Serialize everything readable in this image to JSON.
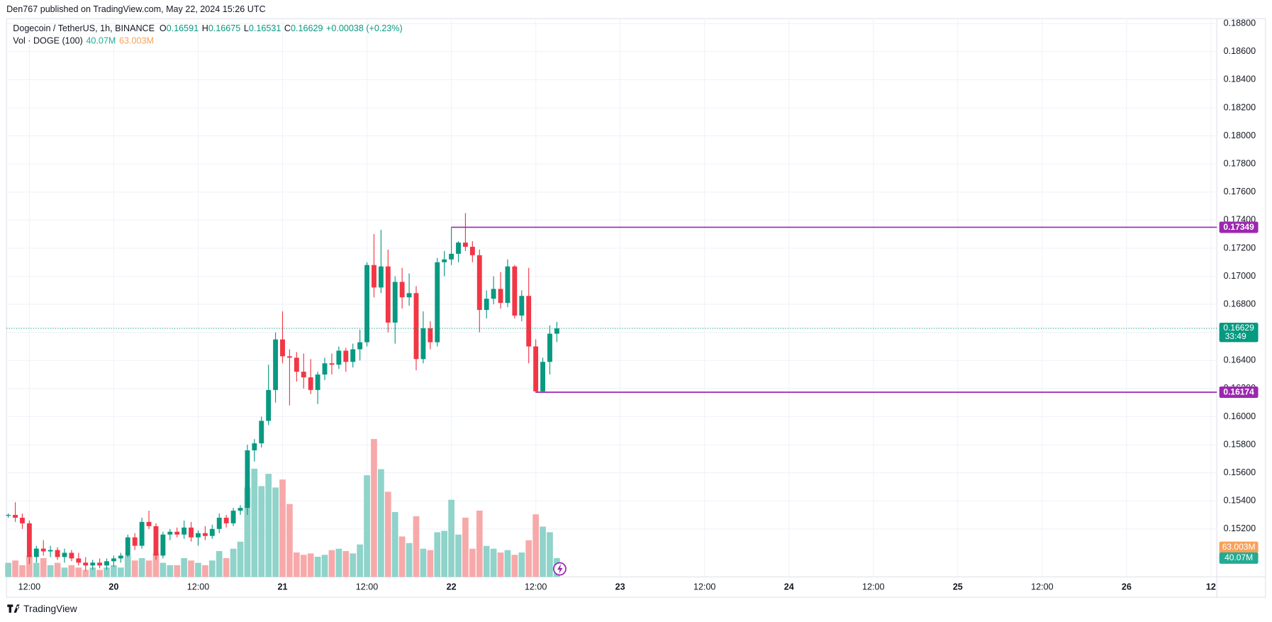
{
  "chart_data": {
    "type": "candlestick",
    "publisher_note": "Den767 published on TradingView.com, May 22, 2024 15:26 UTC",
    "title": "Dogecoin / TetherUS, 1h, BINANCE",
    "legend": {
      "fields": [
        {
          "key": "O",
          "value": "0.16591"
        },
        {
          "key": "H",
          "value": "0.16675"
        },
        {
          "key": "L",
          "value": "0.16531"
        },
        {
          "key": "C",
          "value": "0.16629"
        }
      ],
      "change": "+0.00038 (+0.23%)"
    },
    "x": [
      "19 09:00",
      "19 10:00",
      "19 11:00",
      "19 12:00",
      "19 13:00",
      "19 14:00",
      "19 15:00",
      "19 16:00",
      "19 17:00",
      "19 18:00",
      "19 19:00",
      "19 20:00",
      "19 21:00",
      "19 22:00",
      "19 23:00",
      "20 00:00",
      "20 01:00",
      "20 02:00",
      "20 03:00",
      "20 04:00",
      "20 05:00",
      "20 06:00",
      "20 07:00",
      "20 08:00",
      "20 09:00",
      "20 10:00",
      "20 11:00",
      "20 12:00",
      "20 13:00",
      "20 14:00",
      "20 15:00",
      "20 16:00",
      "20 17:00",
      "20 18:00",
      "20 19:00",
      "20 20:00",
      "20 21:00",
      "20 22:00",
      "20 23:00",
      "21 00:00",
      "21 01:00",
      "21 02:00",
      "21 03:00",
      "21 04:00",
      "21 05:00",
      "21 06:00",
      "21 07:00",
      "21 08:00",
      "21 09:00",
      "21 10:00",
      "21 11:00",
      "21 12:00",
      "21 13:00",
      "21 14:00",
      "21 15:00",
      "21 16:00",
      "21 17:00",
      "21 18:00",
      "21 19:00",
      "21 20:00",
      "21 21:00",
      "21 22:00",
      "21 23:00",
      "22 00:00",
      "22 01:00",
      "22 02:00",
      "22 03:00",
      "22 04:00",
      "22 05:00",
      "22 06:00",
      "22 07:00",
      "22 08:00",
      "22 09:00",
      "22 10:00",
      "22 11:00",
      "22 12:00",
      "22 13:00",
      "22 14:00",
      "22 15:00"
    ],
    "open": [
      0.153,
      0.153,
      0.1528,
      0.1524,
      0.15,
      0.1506,
      0.1504,
      0.1505,
      0.15,
      0.1503,
      0.1499,
      0.1496,
      0.1494,
      0.1496,
      0.1494,
      0.1497,
      0.1499,
      0.1501,
      0.1514,
      0.1508,
      0.1525,
      0.1522,
      0.1501,
      0.1516,
      0.1518,
      0.1516,
      0.1521,
      0.1514,
      0.1517,
      0.1515,
      0.152,
      0.1528,
      0.1524,
      0.1533,
      0.1535,
      0.1576,
      0.1581,
      0.1597,
      0.1619,
      0.1655,
      0.1643,
      0.1642,
      0.1632,
      0.1628,
      0.1619,
      0.163,
      0.1638,
      0.1637,
      0.1647,
      0.1639,
      0.1648,
      0.1653,
      0.1708,
      0.1692,
      0.1707,
      0.1667,
      0.1696,
      0.1685,
      0.1688,
      0.1641,
      0.1663,
      0.1653,
      0.171,
      0.1712,
      0.1716,
      0.1724,
      0.1721,
      0.1715,
      0.1676,
      0.1684,
      0.1691,
      0.1681,
      0.1707,
      0.1672,
      0.1686,
      0.165,
      0.1618,
      0.1639,
      0.16591
    ],
    "high": [
      0.1531,
      0.1539,
      0.1531,
      0.1526,
      0.1508,
      0.1512,
      0.1508,
      0.1507,
      0.1506,
      0.1505,
      0.1503,
      0.15,
      0.1498,
      0.1499,
      0.1499,
      0.1501,
      0.1503,
      0.1516,
      0.1517,
      0.1528,
      0.1533,
      0.1524,
      0.1518,
      0.152,
      0.1521,
      0.1526,
      0.1525,
      0.1519,
      0.1522,
      0.1523,
      0.1531,
      0.153,
      0.1535,
      0.1537,
      0.158,
      0.1584,
      0.16,
      0.1637,
      0.166,
      0.1675,
      0.1648,
      0.1646,
      0.1645,
      0.1641,
      0.1632,
      0.1642,
      0.1645,
      0.165,
      0.1649,
      0.1652,
      0.1662,
      0.171,
      0.173,
      0.1733,
      0.1719,
      0.17,
      0.1706,
      0.1702,
      0.1693,
      0.1675,
      0.1668,
      0.1713,
      0.1718,
      0.1735,
      0.1725,
      0.1745,
      0.1725,
      0.1719,
      0.169,
      0.17,
      0.1703,
      0.1712,
      0.1708,
      0.169,
      0.1706,
      0.1655,
      0.1642,
      0.1665,
      0.16675
    ],
    "low": [
      0.1528,
      0.1525,
      0.152,
      0.1495,
      0.1496,
      0.1501,
      0.15,
      0.1498,
      0.1496,
      0.1497,
      0.1494,
      0.149,
      0.1491,
      0.1492,
      0.1491,
      0.1493,
      0.1496,
      0.15,
      0.1505,
      0.1506,
      0.152,
      0.1498,
      0.1499,
      0.1512,
      0.1514,
      0.1513,
      0.1511,
      0.1508,
      0.1512,
      0.1513,
      0.1517,
      0.1521,
      0.1522,
      0.153,
      0.153,
      0.1568,
      0.1578,
      0.1594,
      0.161,
      0.1638,
      0.1608,
      0.1625,
      0.162,
      0.1616,
      0.1609,
      0.1626,
      0.163,
      0.1634,
      0.1632,
      0.1635,
      0.164,
      0.165,
      0.1685,
      0.1688,
      0.166,
      0.1652,
      0.1677,
      0.1679,
      0.1633,
      0.1638,
      0.1648,
      0.165,
      0.17,
      0.1708,
      0.171,
      0.1718,
      0.171,
      0.166,
      0.167,
      0.168,
      0.1677,
      0.1678,
      0.167,
      0.1668,
      0.1638,
      0.1617,
      0.1617,
      0.163,
      0.16531
    ],
    "close": [
      0.153,
      0.1528,
      0.1524,
      0.15,
      0.1506,
      0.1504,
      0.1505,
      0.15,
      0.1503,
      0.1499,
      0.1496,
      0.1494,
      0.1496,
      0.1494,
      0.1497,
      0.1499,
      0.1501,
      0.1514,
      0.1508,
      0.1525,
      0.1522,
      0.1501,
      0.1516,
      0.1518,
      0.1516,
      0.1521,
      0.1514,
      0.1517,
      0.1515,
      0.152,
      0.1528,
      0.1524,
      0.1533,
      0.1535,
      0.1576,
      0.1581,
      0.1597,
      0.1619,
      0.1655,
      0.1643,
      0.1642,
      0.1632,
      0.1628,
      0.1619,
      0.163,
      0.1638,
      0.1637,
      0.1647,
      0.1639,
      0.1648,
      0.1653,
      0.1708,
      0.1692,
      0.1707,
      0.1667,
      0.1696,
      0.1685,
      0.1688,
      0.1641,
      0.1663,
      0.1653,
      0.171,
      0.1712,
      0.1716,
      0.1724,
      0.1721,
      0.1715,
      0.1676,
      0.1684,
      0.1691,
      0.1681,
      0.1707,
      0.1672,
      0.1686,
      0.165,
      0.1618,
      0.1639,
      0.16591,
      0.16629
    ],
    "up_color": "#089981",
    "down_color": "#f23645",
    "xlim": [
      "19 08:45",
      "26 12:50"
    ],
    "xticks": [
      {
        "value": "19 12:00",
        "label": "12:00"
      },
      {
        "value": "20 00:00",
        "label": "20"
      },
      {
        "value": "20 12:00",
        "label": "12:00"
      },
      {
        "value": "21 00:00",
        "label": "21"
      },
      {
        "value": "21 12:00",
        "label": "12:00"
      },
      {
        "value": "22 00:00",
        "label": "22"
      },
      {
        "value": "22 12:00",
        "label": "12:00"
      },
      {
        "value": "23 00:00",
        "label": "23"
      },
      {
        "value": "23 12:00",
        "label": "12:00"
      },
      {
        "value": "24 00:00",
        "label": "24"
      },
      {
        "value": "24 12:00",
        "label": "12:00"
      },
      {
        "value": "25 00:00",
        "label": "25"
      },
      {
        "value": "25 12:00",
        "label": "12:00"
      },
      {
        "value": "26 00:00",
        "label": "26"
      },
      {
        "value": "26 12:00",
        "label": "12"
      }
    ],
    "ylim": [
      0.14858,
      0.18835
    ],
    "yticks": [
      {
        "value": 0.152,
        "label": "0.15200"
      },
      {
        "value": 0.154,
        "label": "0.15400"
      },
      {
        "value": 0.156,
        "label": "0.15600"
      },
      {
        "value": 0.158,
        "label": "0.15800"
      },
      {
        "value": 0.16,
        "label": "0.16000"
      },
      {
        "value": 0.162,
        "label": "0.16200"
      },
      {
        "value": 0.164,
        "label": "0.16400"
      },
      {
        "value": 0.166,
        "label": "0.16600"
      },
      {
        "value": 0.168,
        "label": "0.16800"
      },
      {
        "value": 0.17,
        "label": "0.17000"
      },
      {
        "value": 0.172,
        "label": "0.17200"
      },
      {
        "value": 0.174,
        "label": "0.17400"
      },
      {
        "value": 0.176,
        "label": "0.17600"
      },
      {
        "value": 0.178,
        "label": "0.17800"
      },
      {
        "value": 0.18,
        "label": "0.18000"
      },
      {
        "value": 0.182,
        "label": "0.18200"
      },
      {
        "value": 0.184,
        "label": "0.18400"
      },
      {
        "value": 0.186,
        "label": "0.18600"
      },
      {
        "value": 0.188,
        "label": "0.18800"
      }
    ],
    "grid": true,
    "last_price": 0.16629,
    "countdown": "33:49",
    "levels": [
      {
        "value": 0.17349,
        "start": "22 00:00",
        "color": "#9c27b0"
      },
      {
        "value": 0.16174,
        "start": "22 12:00",
        "color": "#9c27b0"
      }
    ],
    "volume": {
      "name": "Vol · DOGE (100)",
      "values": [
        30,
        35,
        25,
        45,
        30,
        40,
        25,
        30,
        20,
        25,
        20,
        15,
        20,
        15,
        20,
        25,
        20,
        45,
        35,
        40,
        35,
        50,
        30,
        25,
        25,
        40,
        35,
        30,
        25,
        35,
        55,
        40,
        60,
        75,
        190,
        230,
        193,
        219,
        190,
        207,
        155,
        52,
        47,
        50,
        43,
        47,
        57,
        60,
        55,
        50,
        69,
        216,
        293,
        229,
        181,
        138,
        86,
        72,
        129,
        60,
        57,
        95,
        98,
        164,
        90,
        126,
        60,
        141,
        66,
        60,
        52,
        57,
        47,
        52,
        78,
        133,
        107,
        95,
        40.07
      ],
      "last_label": "40.07M",
      "ylim": [
        0,
        1186
      ],
      "up_color": "#8fd3ca",
      "down_color": "#f7a9aa",
      "ma": {
        "value": 63.003,
        "label": "63.003M",
        "color": "#f7a15b"
      }
    },
    "brand": "TradingView"
  }
}
